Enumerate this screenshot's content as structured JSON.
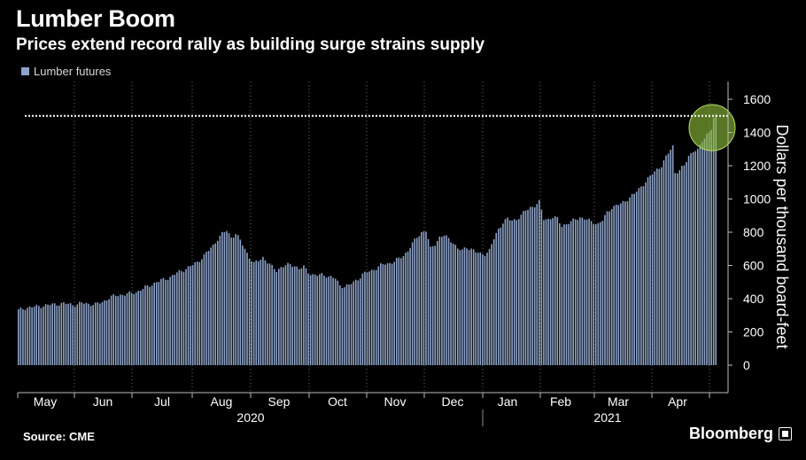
{
  "title": "Lumber Boom",
  "subtitle": "Prices extend record rally as building surge strains supply",
  "source": "Source: CME",
  "brand": "Bloomberg",
  "chart_data": {
    "type": "bar",
    "series": [
      {
        "name": "Lumber futures",
        "color": "#8ea3c9"
      }
    ],
    "ylabel": "Dollars per thousand board-feet",
    "ylim": [
      -150,
      1650
    ],
    "y_ticks": [
      0,
      200,
      400,
      600,
      800,
      1000,
      1200,
      1400,
      1600
    ],
    "reference_line": {
      "value": 1500,
      "style": "dotted",
      "color": "#ffffff"
    },
    "highlight": {
      "shape": "circle",
      "color": "#8fbf3a",
      "near": "latest values"
    },
    "month_labels": [
      "May",
      "Jun",
      "Jul",
      "Aug",
      "Sep",
      "Oct",
      "Nov",
      "Dec",
      "Jan",
      "Feb",
      "Mar",
      "Apr"
    ],
    "year_labels": [
      "2020",
      "2021"
    ],
    "anchors": [
      [
        0,
        330
      ],
      [
        3,
        345
      ],
      [
        6,
        350
      ],
      [
        9,
        355
      ],
      [
        12,
        360
      ],
      [
        15,
        365
      ],
      [
        18,
        370
      ],
      [
        21,
        370
      ],
      [
        24,
        365
      ],
      [
        26,
        365
      ],
      [
        28,
        375
      ],
      [
        31,
        370
      ],
      [
        34,
        365
      ],
      [
        37,
        380
      ],
      [
        40,
        405
      ],
      [
        43,
        420
      ],
      [
        46,
        425
      ],
      [
        49,
        430
      ],
      [
        52,
        440
      ],
      [
        55,
        460
      ],
      [
        58,
        480
      ],
      [
        61,
        500
      ],
      [
        64,
        515
      ],
      [
        67,
        530
      ],
      [
        70,
        555
      ],
      [
        73,
        575
      ],
      [
        76,
        595
      ],
      [
        79,
        620
      ],
      [
        82,
        660
      ],
      [
        84,
        690
      ],
      [
        86,
        720
      ],
      [
        88,
        760
      ],
      [
        90,
        790
      ],
      [
        92,
        810
      ],
      [
        94,
        770
      ],
      [
        96,
        790
      ],
      [
        98,
        750
      ],
      [
        100,
        700
      ],
      [
        102,
        650
      ],
      [
        104,
        610
      ],
      [
        106,
        630
      ],
      [
        108,
        650
      ],
      [
        110,
        620
      ],
      [
        112,
        590
      ],
      [
        114,
        570
      ],
      [
        116,
        590
      ],
      [
        118,
        600
      ],
      [
        120,
        605
      ],
      [
        122,
        600
      ],
      [
        124,
        580
      ],
      [
        126,
        590
      ],
      [
        128,
        560
      ],
      [
        130,
        545
      ],
      [
        132,
        540
      ],
      [
        134,
        545
      ],
      [
        136,
        540
      ],
      [
        138,
        530
      ],
      [
        140,
        520
      ],
      [
        142,
        480
      ],
      [
        144,
        475
      ],
      [
        146,
        480
      ],
      [
        148,
        500
      ],
      [
        150,
        520
      ],
      [
        152,
        545
      ],
      [
        154,
        560
      ],
      [
        156,
        570
      ],
      [
        158,
        585
      ],
      [
        160,
        600
      ],
      [
        162,
        610
      ],
      [
        164,
        615
      ],
      [
        166,
        625
      ],
      [
        168,
        640
      ],
      [
        170,
        660
      ],
      [
        172,
        690
      ],
      [
        174,
        730
      ],
      [
        176,
        770
      ],
      [
        178,
        800
      ],
      [
        180,
        810
      ],
      [
        182,
        700
      ],
      [
        184,
        730
      ],
      [
        186,
        770
      ],
      [
        188,
        780
      ],
      [
        190,
        760
      ],
      [
        192,
        740
      ],
      [
        194,
        700
      ],
      [
        196,
        690
      ],
      [
        198,
        710
      ],
      [
        200,
        700
      ],
      [
        202,
        680
      ],
      [
        204,
        670
      ],
      [
        206,
        670
      ],
      [
        208,
        690
      ],
      [
        210,
        760
      ],
      [
        212,
        820
      ],
      [
        214,
        860
      ],
      [
        216,
        880
      ],
      [
        218,
        870
      ],
      [
        220,
        880
      ],
      [
        222,
        900
      ],
      [
        224,
        930
      ],
      [
        226,
        950
      ],
      [
        228,
        960
      ],
      [
        230,
        980
      ],
      [
        232,
        880
      ],
      [
        234,
        880
      ],
      [
        236,
        890
      ],
      [
        238,
        880
      ],
      [
        240,
        840
      ],
      [
        242,
        850
      ],
      [
        244,
        860
      ],
      [
        246,
        880
      ],
      [
        248,
        890
      ],
      [
        250,
        880
      ],
      [
        252,
        870
      ],
      [
        254,
        860
      ],
      [
        256,
        850
      ],
      [
        258,
        870
      ],
      [
        260,
        920
      ],
      [
        262,
        950
      ],
      [
        264,
        960
      ],
      [
        266,
        970
      ],
      [
        268,
        990
      ],
      [
        270,
        1010
      ],
      [
        272,
        1030
      ],
      [
        274,
        1060
      ],
      [
        276,
        1090
      ],
      [
        278,
        1120
      ],
      [
        280,
        1150
      ],
      [
        282,
        1180
      ],
      [
        284,
        1200
      ],
      [
        286,
        1250
      ],
      [
        288,
        1300
      ],
      [
        289,
        1320
      ],
      [
        290,
        1160
      ],
      [
        292,
        1170
      ],
      [
        294,
        1200
      ],
      [
        296,
        1260
      ],
      [
        298,
        1290
      ],
      [
        300,
        1290
      ],
      [
        302,
        1350
      ],
      [
        304,
        1390
      ],
      [
        306,
        1420
      ],
      [
        307,
        1480
      ],
      [
        308,
        1500
      ]
    ]
  }
}
